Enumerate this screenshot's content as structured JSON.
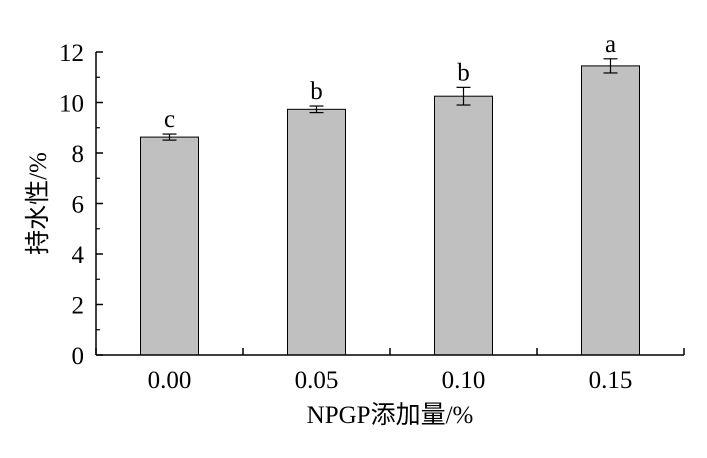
{
  "chart_data": {
    "type": "bar",
    "categories": [
      "0.00",
      "0.05",
      "0.10",
      "0.15"
    ],
    "values": [
      8.63,
      9.73,
      10.25,
      11.45
    ],
    "errors": [
      0.12,
      0.13,
      0.35,
      0.28
    ],
    "significance_labels": [
      "c",
      "b",
      "b",
      "a"
    ],
    "xlabel": "NPGP添加量/%",
    "ylabel": "持水性/%",
    "ylim": [
      0,
      12
    ],
    "yticks": [
      0,
      2,
      4,
      6,
      8,
      10,
      12
    ],
    "grid": false,
    "bar_color": "#c0c0c0",
    "bar_edge_color": "#000000"
  }
}
